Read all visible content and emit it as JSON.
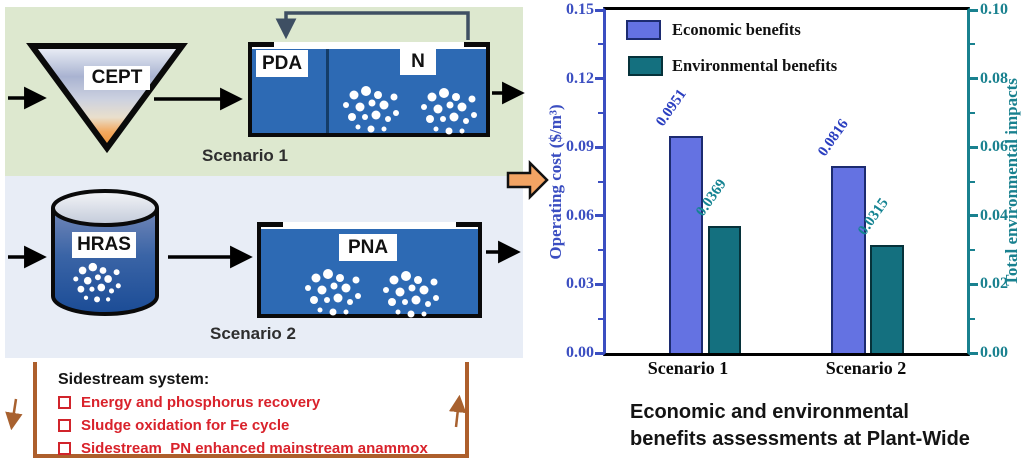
{
  "diagram": {
    "scenario1": {
      "label": "Scenario 1",
      "funnel_label": "CEPT",
      "tank_compartments": [
        "PDA",
        "N"
      ]
    },
    "scenario2": {
      "label": "Scenario 2",
      "cylinder_label": "HRAS",
      "tank_label": "PNA"
    },
    "sidestream": {
      "title": "Sidestream system:",
      "items": [
        "Energy and phosphorus recovery",
        "Sludge oxidation for Fe cycle",
        "Sidestream  PN enhanced mainstream anammox"
      ]
    },
    "icons": {
      "flow-arrow-icon": "black right arrow",
      "recycle-pipe-icon": "dark return pipe with down arrow",
      "block-arrow-icon": "orange right block arrow",
      "checkbox-icon": "red open square bullet",
      "down-arrow-icon": "brown down arrow",
      "up-arrow-icon": "brown up arrow"
    }
  },
  "chart_data": {
    "type": "bar",
    "categories": [
      "Scenario 1",
      "Scenario 2"
    ],
    "series": [
      {
        "name": "Economic benefits",
        "axis": "left",
        "color": "#6472e2",
        "border": "#1c2b70",
        "label_color": "#2b3fc0",
        "values": [
          0.0951,
          0.0816
        ],
        "value_labels": [
          "0.0951",
          "0.0816"
        ]
      },
      {
        "name": "Environmental benefits",
        "axis": "right",
        "color": "#14707f",
        "border": "#06323a",
        "label_color": "#148392",
        "values": [
          0.0369,
          0.0315
        ],
        "value_labels": [
          "0.0369",
          "0.0315"
        ]
      }
    ],
    "left_axis": {
      "label": "Operating cost ($/m³)",
      "color": "#3b4ec1",
      "min": 0.0,
      "max": 0.15,
      "ticks": [
        "0.00",
        "0.03",
        "0.06",
        "0.09",
        "0.12",
        "0.15"
      ]
    },
    "right_axis": {
      "label": "Total environmental impacts",
      "color": "#19818f",
      "min": 0.0,
      "max": 0.1,
      "ticks": [
        "0.00",
        "0.02",
        "0.04",
        "0.06",
        "0.08",
        "0.10"
      ]
    },
    "legend_position": "top-left-inside",
    "grid": false,
    "caption_lines": [
      "Economic and environmental",
      "benefits assessments at Plant-Wide"
    ]
  },
  "colors": {
    "panel_scenario1": "#dde8cf",
    "panel_scenario2": "#e8edf6",
    "tank_blue": "#2d6ab4",
    "sidestream_border": "#ad5f2c",
    "sidestream_text": "#d9222b",
    "block_arrow": "#f2a464",
    "recycle_pipe": "#3e4f63"
  }
}
